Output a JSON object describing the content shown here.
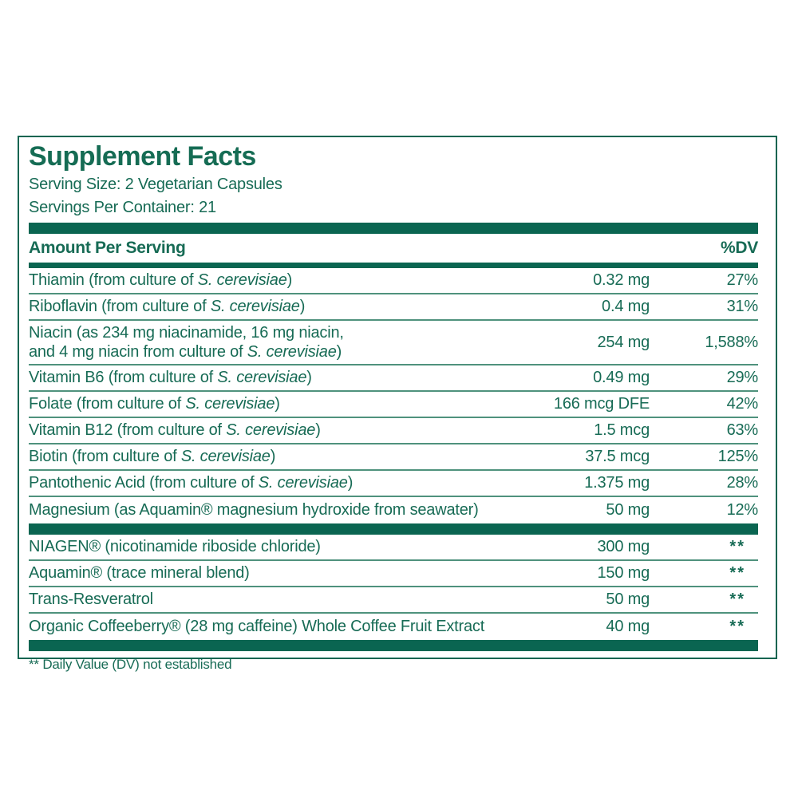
{
  "colors": {
    "brand_green": "#0a6551",
    "text_green": "#176b55",
    "separator_green": "#4f927d",
    "background": "#ffffff"
  },
  "header": {
    "title": "Supplement Facts",
    "serving_size": "Serving Size: 2 Vegetarian Capsules",
    "servings_per_container": "Servings Per Container: 21"
  },
  "table": {
    "columns": {
      "amount": "Amount Per Serving",
      "dv": "%DV"
    },
    "rows": [
      {
        "name_pre": "Thiamin (from culture of ",
        "name_italic": "S. cerevisiae",
        "name_post": ")",
        "amount": "0.32 mg",
        "dv": "27%"
      },
      {
        "name_pre": "Riboflavin (from culture of ",
        "name_italic": "S. cerevisiae",
        "name_post": ")",
        "amount": "0.4 mg",
        "dv": "31%"
      },
      {
        "name_pre": "Niacin (as 234 mg niacinamide, 16 mg niacin,\nand 4 mg niacin from culture of ",
        "name_italic": "S. cerevisiae",
        "name_post": ")",
        "amount": "254 mg",
        "dv": "1,588%"
      },
      {
        "name_pre": "Vitamin B6 (from culture of ",
        "name_italic": "S. cerevisiae",
        "name_post": ")",
        "amount": "0.49 mg",
        "dv": "29%"
      },
      {
        "name_pre": "Folate (from culture of ",
        "name_italic": "S. cerevisiae",
        "name_post": ")",
        "amount": "166 mcg DFE",
        "dv": "42%"
      },
      {
        "name_pre": "Vitamin B12 (from culture of ",
        "name_italic": "S. cerevisiae",
        "name_post": ")",
        "amount": "1.5 mcg",
        "dv": "63%"
      },
      {
        "name_pre": "Biotin (from culture of ",
        "name_italic": "S. cerevisiae",
        "name_post": ")",
        "amount": "37.5 mcg",
        "dv": "125%"
      },
      {
        "name_pre": "Pantothenic Acid (from culture of ",
        "name_italic": "S. cerevisiae",
        "name_post": ")",
        "amount": "1.375 mg",
        "dv": "28%"
      },
      {
        "name_pre": "Magnesium (as Aquamin® magnesium hydroxide from seawater)",
        "amount": "50 mg",
        "dv": "12%"
      },
      {
        "name_pre": "NIAGEN® (nicotinamide riboside chloride)",
        "amount": "300 mg",
        "dv": "**"
      },
      {
        "name_pre": "Aquamin® (trace mineral blend)",
        "amount": "150 mg",
        "dv": "**"
      },
      {
        "name_pre": "Trans-Resveratrol",
        "amount": "50 mg",
        "dv": "**"
      },
      {
        "name_pre": "Organic Coffeeberry® (28 mg caffeine) Whole Coffee Fruit Extract",
        "amount": "40 mg",
        "dv": "**"
      }
    ],
    "footnote": "** Daily Value (DV) not established"
  }
}
